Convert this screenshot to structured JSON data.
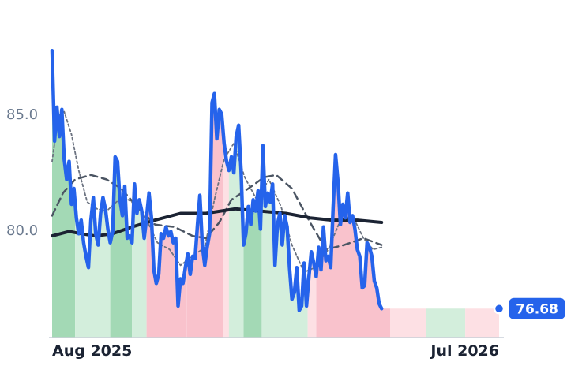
{
  "chart_data": {
    "type": "line",
    "x_ticks": [
      "Aug 2025",
      "Jul 2026"
    ],
    "y_ticks": [
      "80.0",
      "85.0"
    ],
    "ylim": [
      75.4,
      88.6
    ],
    "x_range": [
      "2025-07-27",
      "2026-07-31"
    ],
    "last_value_label": "76.68",
    "grid": false,
    "colors": {
      "price": "#2563eb",
      "ma_long": "#1b2333",
      "ma_mid": "#4b5563",
      "ma_short": "#6b7280",
      "up_strong": "#a3d9b5",
      "up_light": "#d3eedc",
      "down_strong": "#f9c2cc",
      "down_light": "#fde0e4",
      "badge": "#2563eb"
    },
    "regime_bands": [
      {
        "start": "2025-07-27",
        "end": "2025-08-15",
        "state": "up_strong"
      },
      {
        "start": "2025-08-15",
        "end": "2025-09-13",
        "state": "up_light"
      },
      {
        "start": "2025-09-13",
        "end": "2025-10-01",
        "state": "up_strong"
      },
      {
        "start": "2025-10-01",
        "end": "2025-10-13",
        "state": "up_light"
      },
      {
        "start": "2025-10-13",
        "end": "2025-11-15",
        "state": "down_strong"
      },
      {
        "start": "2025-11-15",
        "end": "2025-12-15",
        "state": "down_strong"
      },
      {
        "start": "2025-12-15",
        "end": "2025-12-20",
        "state": "down_light"
      },
      {
        "start": "2025-12-20",
        "end": "2026-01-01",
        "state": "up_light"
      },
      {
        "start": "2026-01-01",
        "end": "2026-01-16",
        "state": "up_strong"
      },
      {
        "start": "2026-01-16",
        "end": "2026-02-23",
        "state": "up_light"
      },
      {
        "start": "2026-02-23",
        "end": "2026-03-02",
        "state": "down_light"
      },
      {
        "start": "2026-03-02",
        "end": "2026-05-02",
        "state": "down_strong"
      },
      {
        "start": "2026-05-02",
        "end": "2026-06-01",
        "state": "down_light"
      },
      {
        "start": "2026-06-01",
        "end": "2026-07-03",
        "state": "up_light"
      },
      {
        "start": "2026-07-03",
        "end": "2026-07-31",
        "state": "down_light"
      }
    ],
    "series": [
      {
        "key": "price",
        "points": [
          [
            "2025-07-27",
            88.1
          ],
          [
            "2025-07-29",
            84.1
          ],
          [
            "2025-07-31",
            85.6
          ],
          [
            "2025-08-02",
            84.3
          ],
          [
            "2025-08-04",
            85.5
          ],
          [
            "2025-08-06",
            83.3
          ],
          [
            "2025-08-08",
            82.4
          ],
          [
            "2025-08-10",
            83.2
          ],
          [
            "2025-08-12",
            81.3
          ],
          [
            "2025-08-14",
            82.0
          ],
          [
            "2025-08-16",
            80.7
          ],
          [
            "2025-08-18",
            80.0
          ],
          [
            "2025-08-20",
            80.6
          ],
          [
            "2025-08-22",
            79.6
          ],
          [
            "2025-08-24",
            79.0
          ],
          [
            "2025-08-26",
            78.5
          ],
          [
            "2025-08-28",
            80.6
          ],
          [
            "2025-08-30",
            81.6
          ],
          [
            "2025-09-01",
            80.0
          ],
          [
            "2025-09-03",
            79.5
          ],
          [
            "2025-09-05",
            80.9
          ],
          [
            "2025-09-07",
            81.6
          ],
          [
            "2025-09-09",
            81.1
          ],
          [
            "2025-09-11",
            80.2
          ],
          [
            "2025-09-13",
            79.6
          ],
          [
            "2025-09-15",
            80.1
          ],
          [
            "2025-09-17",
            83.4
          ],
          [
            "2025-09-19",
            83.2
          ],
          [
            "2025-09-21",
            81.5
          ],
          [
            "2025-09-23",
            80.8
          ],
          [
            "2025-09-25",
            82.1
          ],
          [
            "2025-09-27",
            79.8
          ],
          [
            "2025-09-29",
            79.9
          ],
          [
            "2025-10-01",
            79.6
          ],
          [
            "2025-10-03",
            82.2
          ],
          [
            "2025-10-05",
            80.9
          ],
          [
            "2025-10-07",
            81.5
          ],
          [
            "2025-10-09",
            81.0
          ],
          [
            "2025-10-11",
            79.8
          ],
          [
            "2025-10-13",
            80.7
          ],
          [
            "2025-10-15",
            81.8
          ],
          [
            "2025-10-17",
            80.7
          ],
          [
            "2025-10-19",
            78.4
          ],
          [
            "2025-10-21",
            77.8
          ],
          [
            "2025-10-23",
            78.2
          ],
          [
            "2025-10-25",
            80.0
          ],
          [
            "2025-10-27",
            79.8
          ],
          [
            "2025-10-29",
            80.3
          ],
          [
            "2025-10-31",
            79.9
          ],
          [
            "2025-11-02",
            80.1
          ],
          [
            "2025-11-04",
            79.6
          ],
          [
            "2025-11-06",
            79.8
          ],
          [
            "2025-11-08",
            76.8
          ],
          [
            "2025-11-10",
            78.0
          ],
          [
            "2025-11-12",
            77.8
          ],
          [
            "2025-11-14",
            78.5
          ],
          [
            "2025-11-16",
            79.1
          ],
          [
            "2025-11-18",
            78.2
          ],
          [
            "2025-11-20",
            79.0
          ],
          [
            "2025-11-22",
            78.9
          ],
          [
            "2025-11-24",
            80.4
          ],
          [
            "2025-11-26",
            81.7
          ],
          [
            "2025-11-28",
            79.5
          ],
          [
            "2025-11-30",
            78.6
          ],
          [
            "2025-12-02",
            79.4
          ],
          [
            "2025-12-04",
            80.0
          ],
          [
            "2025-12-06",
            85.8
          ],
          [
            "2025-12-08",
            86.2
          ],
          [
            "2025-12-10",
            84.2
          ],
          [
            "2025-12-12",
            85.5
          ],
          [
            "2025-12-14",
            85.3
          ],
          [
            "2025-12-16",
            84.0
          ],
          [
            "2025-12-18",
            83.2
          ],
          [
            "2025-12-20",
            82.8
          ],
          [
            "2025-12-22",
            83.4
          ],
          [
            "2025-12-24",
            82.7
          ],
          [
            "2025-12-26",
            84.3
          ],
          [
            "2025-12-28",
            84.8
          ],
          [
            "2025-12-30",
            82.8
          ],
          [
            "2026-01-01",
            79.5
          ],
          [
            "2026-01-03",
            80.0
          ],
          [
            "2026-01-05",
            81.2
          ],
          [
            "2026-01-07",
            80.4
          ],
          [
            "2026-01-09",
            81.5
          ],
          [
            "2026-01-11",
            81.0
          ],
          [
            "2026-01-13",
            81.9
          ],
          [
            "2026-01-15",
            80.2
          ],
          [
            "2026-01-17",
            83.9
          ],
          [
            "2026-01-19",
            81.2
          ],
          [
            "2026-01-21",
            81.8
          ],
          [
            "2026-01-23",
            81.4
          ],
          [
            "2026-01-25",
            82.2
          ],
          [
            "2026-01-27",
            78.6
          ],
          [
            "2026-01-29",
            80.4
          ],
          [
            "2026-01-31",
            80.9
          ],
          [
            "2026-02-02",
            79.5
          ],
          [
            "2026-02-04",
            80.8
          ],
          [
            "2026-02-06",
            80.3
          ],
          [
            "2026-02-08",
            78.5
          ],
          [
            "2026-02-10",
            77.1
          ],
          [
            "2026-02-12",
            77.4
          ],
          [
            "2026-02-14",
            78.5
          ],
          [
            "2026-02-16",
            76.6
          ],
          [
            "2026-02-18",
            76.8
          ],
          [
            "2026-02-20",
            78.7
          ],
          [
            "2026-02-22",
            76.8
          ],
          [
            "2026-02-24",
            78.1
          ],
          [
            "2026-02-26",
            79.2
          ],
          [
            "2026-02-28",
            78.7
          ],
          [
            "2026-03-02",
            78.1
          ],
          [
            "2026-03-04",
            79.4
          ],
          [
            "2026-03-06",
            78.4
          ],
          [
            "2026-03-08",
            80.3
          ],
          [
            "2026-03-10",
            78.8
          ],
          [
            "2026-03-12",
            79.0
          ],
          [
            "2026-03-14",
            78.5
          ],
          [
            "2026-03-16",
            81.2
          ],
          [
            "2026-03-18",
            83.5
          ],
          [
            "2026-03-20",
            82.3
          ],
          [
            "2026-03-22",
            80.4
          ],
          [
            "2026-03-24",
            81.3
          ],
          [
            "2026-03-26",
            80.7
          ],
          [
            "2026-03-28",
            81.8
          ],
          [
            "2026-03-30",
            80.5
          ],
          [
            "2026-04-01",
            80.8
          ],
          [
            "2026-04-03",
            80.2
          ],
          [
            "2026-04-05",
            79.3
          ],
          [
            "2026-04-07",
            79.0
          ],
          [
            "2026-04-09",
            77.6
          ],
          [
            "2026-04-11",
            77.7
          ],
          [
            "2026-04-13",
            79.6
          ],
          [
            "2026-04-15",
            79.4
          ],
          [
            "2026-04-17",
            79.0
          ],
          [
            "2026-04-19",
            77.9
          ],
          [
            "2026-04-21",
            77.6
          ],
          [
            "2026-04-23",
            76.9
          ],
          [
            "2026-04-25",
            76.68
          ]
        ]
      },
      {
        "key": "ma_long",
        "points": [
          [
            "2025-07-27",
            79.9
          ],
          [
            "2025-08-10",
            80.1
          ],
          [
            "2025-08-20",
            80.0
          ],
          [
            "2025-09-01",
            79.9
          ],
          [
            "2025-09-15",
            80.0
          ],
          [
            "2025-10-01",
            80.3
          ],
          [
            "2025-10-20",
            80.6
          ],
          [
            "2025-11-10",
            80.9
          ],
          [
            "2025-12-01",
            80.9
          ],
          [
            "2025-12-25",
            81.1
          ],
          [
            "2026-01-15",
            81.0
          ],
          [
            "2026-02-05",
            80.9
          ],
          [
            "2026-02-25",
            80.7
          ],
          [
            "2026-03-15",
            80.6
          ],
          [
            "2026-04-05",
            80.6
          ],
          [
            "2026-04-25",
            80.5
          ]
        ]
      },
      {
        "key": "ma_mid",
        "points": [
          [
            "2025-07-27",
            80.8
          ],
          [
            "2025-08-05",
            81.8
          ],
          [
            "2025-08-15",
            82.4
          ],
          [
            "2025-08-28",
            82.6
          ],
          [
            "2025-09-10",
            82.4
          ],
          [
            "2025-09-22",
            82.0
          ],
          [
            "2025-10-05",
            81.2
          ],
          [
            "2025-10-20",
            80.4
          ],
          [
            "2025-11-05",
            80.3
          ],
          [
            "2025-11-20",
            79.9
          ],
          [
            "2025-12-01",
            79.8
          ],
          [
            "2025-12-12",
            80.5
          ],
          [
            "2025-12-22",
            81.5
          ],
          [
            "2026-01-05",
            82.0
          ],
          [
            "2026-01-18",
            82.5
          ],
          [
            "2026-01-28",
            82.6
          ],
          [
            "2026-02-10",
            82.0
          ],
          [
            "2026-02-25",
            80.5
          ],
          [
            "2026-03-10",
            79.3
          ],
          [
            "2026-03-25",
            79.5
          ],
          [
            "2026-04-10",
            79.8
          ],
          [
            "2026-04-25",
            79.5
          ]
        ]
      },
      {
        "key": "ma_short",
        "points": [
          [
            "2025-07-27",
            83.2
          ],
          [
            "2025-08-01",
            85.2
          ],
          [
            "2025-08-06",
            85.4
          ],
          [
            "2025-08-12",
            84.4
          ],
          [
            "2025-08-18",
            82.8
          ],
          [
            "2025-08-25",
            81.4
          ],
          [
            "2025-09-02",
            81.1
          ],
          [
            "2025-09-10",
            81.0
          ],
          [
            "2025-09-20",
            81.5
          ],
          [
            "2025-09-28",
            81.5
          ],
          [
            "2025-10-06",
            81.2
          ],
          [
            "2025-10-14",
            80.5
          ],
          [
            "2025-10-22",
            79.6
          ],
          [
            "2025-11-01",
            79.3
          ],
          [
            "2025-11-10",
            78.6
          ],
          [
            "2025-11-20",
            79.0
          ],
          [
            "2025-11-30",
            79.4
          ],
          [
            "2025-12-08",
            81.5
          ],
          [
            "2025-12-16",
            83.3
          ],
          [
            "2025-12-24",
            84.0
          ],
          [
            "2026-01-02",
            82.5
          ],
          [
            "2026-01-12",
            81.5
          ],
          [
            "2026-01-22",
            82.4
          ],
          [
            "2026-02-01",
            81.2
          ],
          [
            "2026-02-10",
            79.5
          ],
          [
            "2026-02-20",
            78.3
          ],
          [
            "2026-03-01",
            78.5
          ],
          [
            "2026-03-12",
            79.3
          ],
          [
            "2026-03-22",
            80.6
          ],
          [
            "2026-04-01",
            80.8
          ],
          [
            "2026-04-10",
            79.8
          ],
          [
            "2026-04-18",
            79.3
          ],
          [
            "2026-04-25",
            79.4
          ]
        ]
      }
    ]
  }
}
